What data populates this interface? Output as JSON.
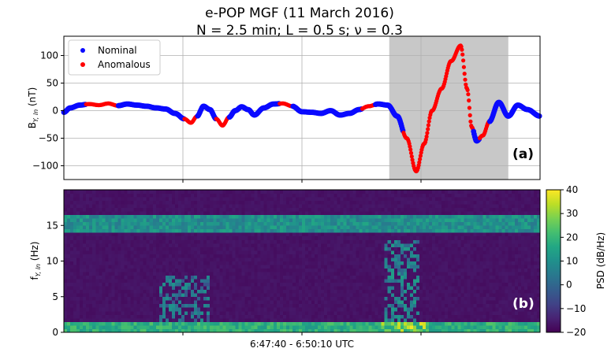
{
  "figure": {
    "title_line1": "e-POP MGF (11 March 2016)",
    "title_line2": "N = 2.5 min; L = 0.5 s; ν = 0.3",
    "xlabel": "6:47:40 - 6:50:10 UTC"
  },
  "chart_data": [
    {
      "type": "scatter",
      "panel_label": "(a)",
      "ylabel_main": "B",
      "ylabel_sub": "Y, ln",
      "ylabel_unit": " (nT)",
      "ylim": [
        -125,
        135
      ],
      "yticks": [
        100,
        50,
        0,
        -50,
        -100
      ],
      "xlim": [
        0,
        150
      ],
      "grid": true,
      "legend": {
        "position": "top-left",
        "entries": [
          {
            "label": "Nominal",
            "color": "#0a0aff"
          },
          {
            "label": "Anomalous",
            "color": "#ff0000"
          }
        ]
      },
      "shaded_region": {
        "x": [
          102.5,
          140
        ],
        "color": "#c8c8c8"
      },
      "trace": {
        "x": [
          0,
          2,
          5,
          8,
          11,
          14,
          17,
          20,
          23,
          26,
          29,
          32,
          35,
          38,
          40,
          42,
          44,
          46,
          48,
          50,
          52,
          54,
          56,
          58,
          60,
          63,
          66,
          69,
          72,
          75,
          78,
          81,
          84,
          87,
          90,
          93,
          96,
          99,
          102,
          105,
          108,
          111,
          113.5,
          116,
          119,
          122,
          125,
          127,
          128.5,
          130,
          132,
          134,
          137,
          140,
          143,
          146,
          150
        ],
        "y": [
          -3,
          5,
          10,
          12,
          10,
          13,
          9,
          12,
          10,
          8,
          5,
          3,
          -5,
          -15,
          -22,
          -10,
          8,
          2,
          -15,
          -27,
          -12,
          0,
          7,
          2,
          -8,
          5,
          12,
          13,
          8,
          -2,
          -3,
          -5,
          0,
          -8,
          -5,
          2,
          8,
          12,
          10,
          -10,
          -50,
          -110,
          -60,
          0,
          40,
          90,
          118,
          40,
          -30,
          -55,
          -45,
          -20,
          15,
          -10,
          10,
          2,
          -10
        ],
        "anomalous_ranges": [
          [
            7,
            17
          ],
          [
            38,
            42
          ],
          [
            48,
            52
          ],
          [
            68,
            72
          ],
          [
            94,
            98
          ],
          [
            107,
            129
          ],
          [
            131,
            134
          ]
        ]
      },
      "series": [
        {
          "name": "Nominal"
        },
        {
          "name": "Anomalous"
        }
      ]
    },
    {
      "type": "heatmap",
      "panel_label": "(b)",
      "ylabel_main": "f",
      "ylabel_sub": "Y, ln",
      "ylabel_unit": " (Hz)",
      "ylim": [
        0,
        20
      ],
      "yticks": [
        15,
        10,
        5,
        0
      ],
      "xlim": [
        0,
        150
      ],
      "colorbar": {
        "label": "PSD (dB/Hz)",
        "min": -20,
        "max": 40,
        "ticks": [
          40,
          30,
          20,
          10,
          0,
          -10,
          -20
        ]
      },
      "background_psd": -17,
      "bands": [
        {
          "f": [
            14,
            16.5
          ],
          "psd": 10
        },
        {
          "f": [
            0,
            1.5
          ],
          "psd": 18
        }
      ],
      "bursts": [
        {
          "x": [
            30,
            46
          ],
          "f": [
            1,
            8
          ],
          "psd": 3
        },
        {
          "x": [
            101,
            112
          ],
          "f": [
            1,
            13
          ],
          "psd": 6
        },
        {
          "x": [
            100,
            115
          ],
          "f": [
            0,
            1.5
          ],
          "psd": 32
        }
      ]
    }
  ]
}
